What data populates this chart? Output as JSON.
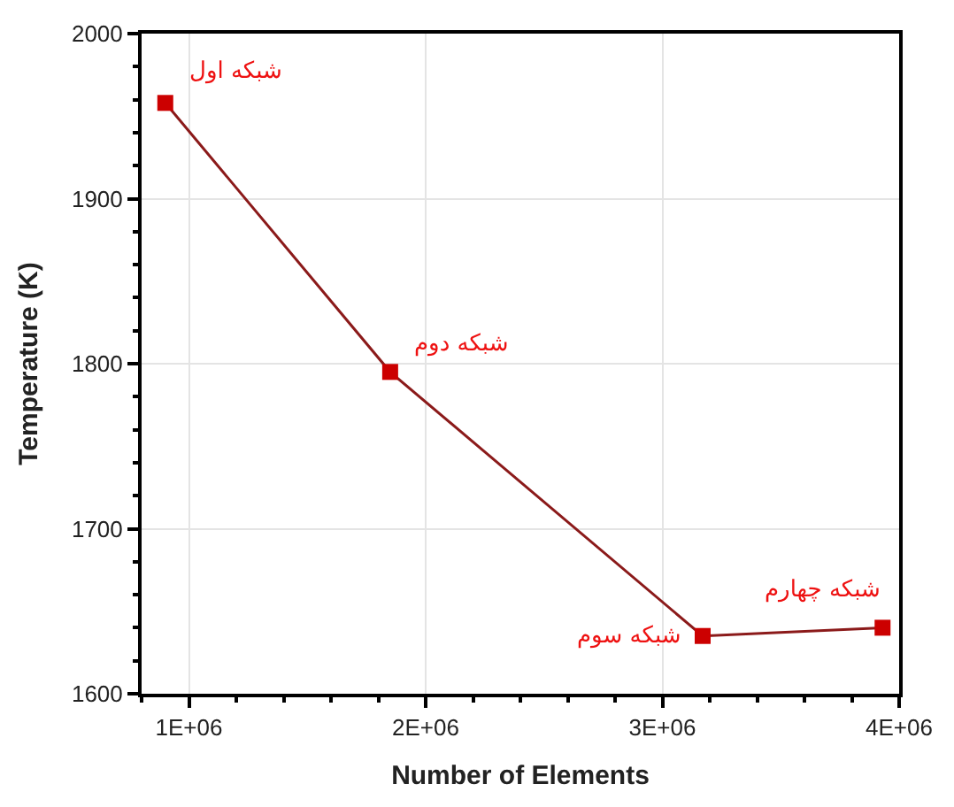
{
  "chart_data": {
    "type": "line",
    "xlabel": "Number of Elements",
    "ylabel": "Temperature (K)",
    "x": [
      900000,
      1850000,
      3170000,
      3930000
    ],
    "series": [
      {
        "color": "#8b1a1a",
        "colors": [
          "#cc0000",
          "#cc0000",
          "#cc0000",
          "#cc0000"
        ],
        "values": [
          1958,
          1795,
          1635,
          1640
        ]
      }
    ],
    "xlim": [
      800000,
      4000000
    ],
    "xticks": [
      {
        "value": 1000000,
        "label": "1E+06"
      },
      {
        "value": 2000000,
        "label": "2E+06"
      },
      {
        "value": 3000000,
        "label": "3E+06"
      },
      {
        "value": 4000000,
        "label": "4E+06"
      }
    ],
    "ylim": [
      1600,
      2000
    ],
    "yticks": [
      1600,
      1700,
      1800,
      1900,
      2000
    ],
    "grid": true,
    "marker": "square",
    "line_style": "solid",
    "annotations": [
      {
        "text": "شبکه اول",
        "x": 900000,
        "y": 1958
      },
      {
        "text": "شبکه دوم",
        "x": 1850000,
        "y": 1795
      },
      {
        "text": "شبکه سوم",
        "x": 3170000,
        "y": 1635
      },
      {
        "text": "شبکه چهارم",
        "x": 3930000,
        "y": 1640
      }
    ]
  }
}
